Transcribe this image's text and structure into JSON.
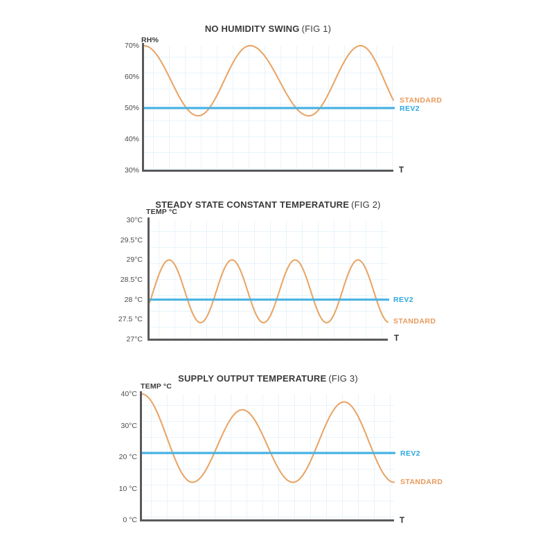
{
  "page": {
    "background_color": "#ffffff"
  },
  "colors": {
    "title_text": "#3a3a3c",
    "tick_text": "#4a4a4c",
    "axis": "#59595b",
    "grid": "#e9f4fb",
    "standard_curve": "#e9a567",
    "standard_label": "#e8995a",
    "rev2_line": "#48b2e2",
    "rev2_label": "#2ba7e0"
  },
  "chart_data": [
    {
      "type": "line",
      "title": "NO HUMIDITY SWING",
      "fig_label": "(FIG 1)",
      "y_axis_label": "RH%",
      "x_axis_label": "T",
      "ylim": [
        30,
        70
      ],
      "grid": true,
      "yticks": [
        {
          "label": "70%",
          "value": 70
        },
        {
          "label": "60%",
          "value": 60
        },
        {
          "label": "50%",
          "value": 50
        },
        {
          "label": "40%",
          "value": 40
        },
        {
          "label": "30%",
          "value": 30
        }
      ],
      "series": [
        {
          "name": "STANDARD",
          "shape": "sine-wave",
          "peak": 70,
          "trough": 47.5,
          "keyframes": [
            [
              0,
              70
            ],
            [
              0.217,
              47.5
            ],
            [
              0.425,
              70
            ],
            [
              0.661,
              47.5
            ],
            [
              0.869,
              70
            ],
            [
              1.06,
              47.5
            ]
          ]
        },
        {
          "name": "REV2",
          "shape": "constant",
          "value": 50
        }
      ],
      "legend": [
        {
          "label": "STANDARD"
        },
        {
          "label": "REV2"
        }
      ]
    },
    {
      "type": "line",
      "title": "STEADY STATE CONSTANT TEMPERATURE",
      "fig_label": "(FIG 2)",
      "y_axis_label": "TEMP °C",
      "x_axis_label": "T",
      "ylim": [
        27,
        30
      ],
      "grid": true,
      "yticks": [
        {
          "label": "30°C",
          "value": 30
        },
        {
          "label": "29.5°C",
          "value": 29.5
        },
        {
          "label": "29°C",
          "value": 29
        },
        {
          "label": "28.5°C",
          "value": 28.5
        },
        {
          "label": "28 °C",
          "value": 28
        },
        {
          "label": "27.5 °C",
          "value": 27.5
        },
        {
          "label": "27°C",
          "value": 27
        }
      ],
      "series": [
        {
          "name": "STANDARD",
          "shape": "sine-wave",
          "peak": 29,
          "trough": 27.42,
          "keyframes": [
            [
              -0.051,
              27.42
            ],
            [
              0.082,
              29
            ],
            [
              0.214,
              27.42
            ],
            [
              0.346,
              29
            ],
            [
              0.478,
              27.42
            ],
            [
              0.611,
              29
            ],
            [
              0.743,
              27.42
            ],
            [
              0.875,
              29
            ],
            [
              1.007,
              27.42
            ]
          ]
        },
        {
          "name": "REV2",
          "shape": "constant",
          "value": 28
        }
      ],
      "legend": [
        {
          "label": "REV2"
        },
        {
          "label": "STANDARD"
        }
      ]
    },
    {
      "type": "line",
      "title": "SUPPLY OUTPUT TEMPERATURE",
      "fig_label": "(FIG 3)",
      "y_axis_label": "TEMP °C",
      "x_axis_label": "T",
      "ylim": [
        0,
        40
      ],
      "grid": true,
      "yticks": [
        {
          "label": "40°C",
          "value": 40
        },
        {
          "label": "30°C",
          "value": 30
        },
        {
          "label": "20 °C",
          "value": 20
        },
        {
          "label": "10 °C",
          "value": 10
        },
        {
          "label": "0 °C",
          "value": 0
        }
      ],
      "series": [
        {
          "name": "STANDARD",
          "shape": "sine-wave",
          "peak": 40,
          "trough": 12,
          "keyframes": [
            [
              0,
              40
            ],
            [
              0.2,
              12
            ],
            [
              0.398,
              35
            ],
            [
              0.599,
              12
            ],
            [
              0.802,
              37.5
            ],
            [
              1.0,
              12
            ]
          ]
        },
        {
          "name": "REV2",
          "shape": "constant",
          "value": 21.3
        }
      ],
      "legend": [
        {
          "label": "REV2"
        },
        {
          "label": "STANDARD"
        }
      ]
    }
  ]
}
